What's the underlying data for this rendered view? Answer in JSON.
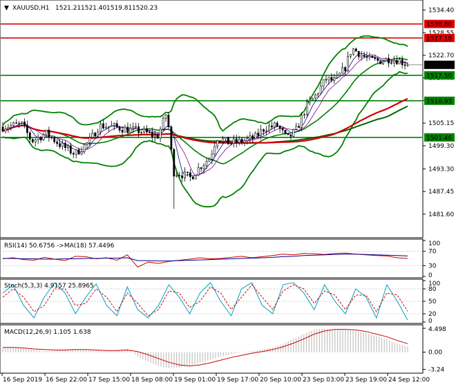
{
  "chart_data": [
    {
      "type": "candlestick",
      "symbol": "XAUUSD,H1",
      "ohlc": [
        "1521.21",
        "1521.40",
        "1519.81",
        "1520.23"
      ],
      "ylim": [
        1475.5,
        1537.0
      ],
      "price_ticks": [
        "1534.40",
        "1528.55",
        "1522.70",
        "1516.85",
        "1511.00",
        "1505.15",
        "1499.30",
        "1493.30",
        "1487.45",
        "1481.60"
      ],
      "horizontal_levels": [
        {
          "value": 1530.8,
          "label": "1530.80",
          "color": "#dd0000",
          "tag": "red"
        },
        {
          "value": 1527.18,
          "label": "1527.18",
          "color": "#dd0000",
          "tag": "red"
        },
        {
          "value": 1517.5,
          "label": "1517.50",
          "color": "#008000",
          "tag": "green"
        },
        {
          "value": 1510.93,
          "label": "1510.93",
          "color": "#008000",
          "tag": "green"
        },
        {
          "value": 1501.46,
          "label": "1501.46",
          "color": "#008000",
          "tag": "green"
        }
      ],
      "current_price": {
        "value": 1520.23,
        "label": "1520.23"
      },
      "x_labels": [
        "16 Sep 2019",
        "16 Sep 22:00",
        "17 Sep 15:00",
        "18 Sep 08:00",
        "19 Sep 01:00",
        "19 Sep 17:00",
        "20 Sep 10:00",
        "23 Sep 03:00",
        "23 Sep 19:00",
        "24 Sep 12:00"
      ],
      "anchors": [
        {
          "t": 0,
          "p": 1504.2
        },
        {
          "t": 20,
          "p": 1504.8
        },
        {
          "t": 30,
          "p": 1500.5
        },
        {
          "t": 45,
          "p": 1502.5
        },
        {
          "t": 60,
          "p": 1499.5
        },
        {
          "t": 75,
          "p": 1497.2
        },
        {
          "t": 90,
          "p": 1500.5
        },
        {
          "t": 100,
          "p": 1504.5
        },
        {
          "t": 115,
          "p": 1504.2
        },
        {
          "t": 130,
          "p": 1503.5
        },
        {
          "t": 145,
          "p": 1503.0
        },
        {
          "t": 160,
          "p": 1501.5
        },
        {
          "t": 165,
          "p": 1504.5
        },
        {
          "t": 170,
          "p": 1508.0
        },
        {
          "t": 173,
          "p": 1502.0
        },
        {
          "t": 177,
          "p": 1492.5
        },
        {
          "t": 185,
          "p": 1492.0
        },
        {
          "t": 195,
          "p": 1491.0
        },
        {
          "t": 205,
          "p": 1494.0
        },
        {
          "t": 215,
          "p": 1496.2
        },
        {
          "t": 222,
          "p": 1501.5
        },
        {
          "t": 235,
          "p": 1500.0
        },
        {
          "t": 250,
          "p": 1500.5
        },
        {
          "t": 262,
          "p": 1501.5
        },
        {
          "t": 272,
          "p": 1504.0
        },
        {
          "t": 285,
          "p": 1504.5
        },
        {
          "t": 295,
          "p": 1501.0
        },
        {
          "t": 305,
          "p": 1503.5
        },
        {
          "t": 315,
          "p": 1509.5
        },
        {
          "t": 325,
          "p": 1512.5
        },
        {
          "t": 335,
          "p": 1516.5
        },
        {
          "t": 345,
          "p": 1516.0
        },
        {
          "t": 355,
          "p": 1519.5
        },
        {
          "t": 362,
          "p": 1524.5
        },
        {
          "t": 370,
          "p": 1523.2
        },
        {
          "t": 380,
          "p": 1521.5
        },
        {
          "t": 390,
          "p": 1521.2
        },
        {
          "t": 400,
          "p": 1521.8
        },
        {
          "t": 410,
          "p": 1521.5
        },
        {
          "t": 420,
          "p": 1520.23
        }
      ],
      "indicators": [
        {
          "name": "MA fast",
          "color": "#00008b",
          "role": "ma_fast"
        },
        {
          "name": "MA medium",
          "color": "#8b008b",
          "role": "ma_med"
        },
        {
          "name": "MA slow",
          "color": "#d40000",
          "role": "ma_slow"
        },
        {
          "name": "MA long",
          "color": "#006400",
          "role": "ma_long"
        },
        {
          "name": "Bollinger Bands",
          "color": "#008000",
          "role": "bands"
        }
      ]
    },
    {
      "type": "line",
      "label": "RSI(14) 50.6756 ->MA(18) 57.4496",
      "ylim": [
        0,
        100
      ],
      "ticks": [
        "100",
        "70",
        "30",
        "0"
      ],
      "levels": [
        70,
        30
      ],
      "series": [
        {
          "color": "#cc0000",
          "values": [
            49,
            52,
            47,
            45,
            53,
            48,
            44,
            56,
            55,
            49,
            52,
            45,
            60,
            26,
            40,
            36,
            42,
            45,
            48,
            52,
            49,
            50,
            53,
            56,
            52,
            55,
            58,
            62,
            60,
            64,
            63,
            61,
            64,
            65,
            62,
            60,
            58,
            57,
            52,
            50
          ]
        },
        {
          "color": "#00008b",
          "values": [
            50,
            50,
            49,
            49,
            48,
            48,
            49,
            49,
            50,
            50,
            51,
            51,
            52,
            44,
            44,
            43,
            43,
            44,
            45,
            46,
            47,
            48,
            49,
            50,
            51,
            52,
            53,
            55,
            56,
            58,
            59,
            60,
            61,
            62,
            62,
            61,
            60,
            59,
            58,
            57
          ]
        }
      ]
    },
    {
      "type": "line",
      "label": "Stoch(5,3,3) 4.9157 25.8965",
      "ylim": [
        0,
        100
      ],
      "ticks": [
        "100",
        "80",
        "50",
        "20",
        "0"
      ],
      "levels": [
        80,
        50,
        20
      ],
      "series": [
        {
          "color": "#00a0c0",
          "values": [
            70,
            90,
            40,
            10,
            60,
            95,
            70,
            20,
            60,
            92,
            40,
            15,
            85,
            30,
            10,
            40,
            90,
            60,
            20,
            70,
            95,
            50,
            15,
            80,
            95,
            40,
            20,
            90,
            95,
            70,
            30,
            90,
            50,
            20,
            80,
            60,
            10,
            90,
            50,
            5
          ]
        },
        {
          "color": "#cc0000",
          "values": [
            60,
            80,
            60,
            25,
            40,
            80,
            80,
            40,
            45,
            80,
            60,
            25,
            70,
            45,
            15,
            30,
            75,
            70,
            35,
            50,
            85,
            70,
            30,
            60,
            90,
            60,
            30,
            75,
            90,
            80,
            45,
            75,
            65,
            30,
            65,
            65,
            25,
            70,
            65,
            26
          ]
        }
      ]
    },
    {
      "type": "bar",
      "label": "MACD(12,26,9) 1.105 1.638",
      "ylim": [
        -3.7,
        4.9
      ],
      "ticks": [
        "4.498",
        "0.00",
        "-3.24"
      ],
      "series": [
        {
          "name": "MACD",
          "color": "#c0c0c0",
          "values": [
            0.8,
            0.9,
            0.7,
            0.4,
            0.2,
            0.3,
            0.5,
            0.6,
            0.4,
            0.3,
            0.2,
            0.4,
            0.6,
            -0.8,
            -1.8,
            -2.6,
            -3.0,
            -2.9,
            -2.5,
            -2.0,
            -1.4,
            -0.8,
            -0.4,
            0.0,
            0.2,
            0.5,
            0.9,
            1.6,
            2.5,
            3.4,
            4.3,
            4.4,
            4.3,
            4.2,
            4.0,
            3.6,
            3.0,
            2.4,
            1.6,
            1.1
          ]
        },
        {
          "name": "Signal",
          "color": "#cc0000",
          "values": [
            0.9,
            0.9,
            0.8,
            0.6,
            0.5,
            0.4,
            0.4,
            0.5,
            0.5,
            0.4,
            0.3,
            0.3,
            0.4,
            0.1,
            -0.5,
            -1.2,
            -1.9,
            -2.4,
            -2.6,
            -2.4,
            -2.0,
            -1.5,
            -1.0,
            -0.6,
            -0.2,
            0.1,
            0.5,
            1.0,
            1.7,
            2.5,
            3.4,
            4.0,
            4.3,
            4.3,
            4.2,
            3.9,
            3.4,
            2.9,
            2.2,
            1.6
          ]
        }
      ]
    }
  ]
}
